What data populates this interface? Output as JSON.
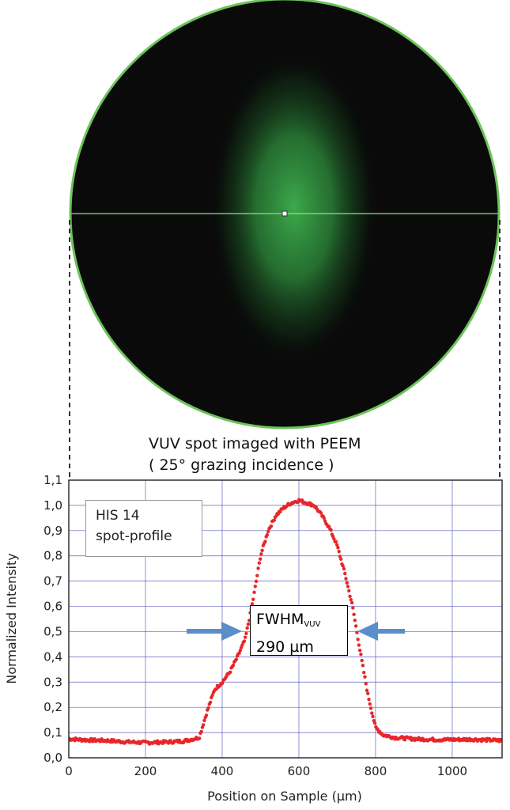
{
  "caption": {
    "line1": "VUV spot imaged with PEEM",
    "line2": "( 25° grazing incidence )"
  },
  "colors": {
    "spot_glow": "#3fb24f",
    "circle_rim": "#6cc45a",
    "profile_line": "#8fe08a",
    "data_points": "#e8262a",
    "grid": "#3b3bb0",
    "arrow": "#5b8ec8"
  },
  "legend": {
    "line1": "HIS 14",
    "line2": "spot-profile"
  },
  "annotation": {
    "label_main": "FWHM",
    "label_sub": "VUV",
    "value": "290 µm"
  },
  "chart_data": {
    "type": "scatter",
    "xlabel": "Position on Sample (µm)",
    "ylabel": "Normalized Intensity",
    "xlim": [
      0,
      1130
    ],
    "ylim": [
      0,
      1.1
    ],
    "x_ticks": [
      0,
      200,
      400,
      600,
      800,
      1000
    ],
    "x_tick_labels": [
      "0",
      "200",
      "400",
      "600",
      "800",
      "1000"
    ],
    "y_ticks": [
      0,
      0.1,
      0.2,
      0.3,
      0.4,
      0.5,
      0.6,
      0.7,
      0.8,
      0.9,
      1.0,
      1.1
    ],
    "y_tick_labels": [
      "0,0",
      "0,1",
      "0,2",
      "0,3",
      "0,4",
      "0,5",
      "0,6",
      "0,7",
      "0,8",
      "0,9",
      "1,0",
      "1,1"
    ],
    "grid": true,
    "series": [
      {
        "x": [
          0,
          50,
          100,
          150,
          200,
          250,
          300,
          340,
          360,
          380,
          400,
          420,
          440,
          460,
          480,
          500,
          520,
          540,
          560,
          580,
          600,
          620,
          640,
          660,
          680,
          700,
          720,
          740,
          760,
          780,
          800,
          820,
          850,
          900,
          950,
          1000,
          1050,
          1100,
          1130
        ],
        "y": [
          0.075,
          0.07,
          0.068,
          0.063,
          0.06,
          0.062,
          0.066,
          0.08,
          0.18,
          0.27,
          0.3,
          0.34,
          0.4,
          0.47,
          0.62,
          0.8,
          0.9,
          0.96,
          0.99,
          1.01,
          1.02,
          1.01,
          1.0,
          0.96,
          0.91,
          0.84,
          0.73,
          0.6,
          0.42,
          0.25,
          0.12,
          0.09,
          0.08,
          0.075,
          0.072,
          0.072,
          0.073,
          0.07,
          0.068
        ]
      }
    ],
    "fwhm_markers": [
      475,
      765
    ]
  }
}
